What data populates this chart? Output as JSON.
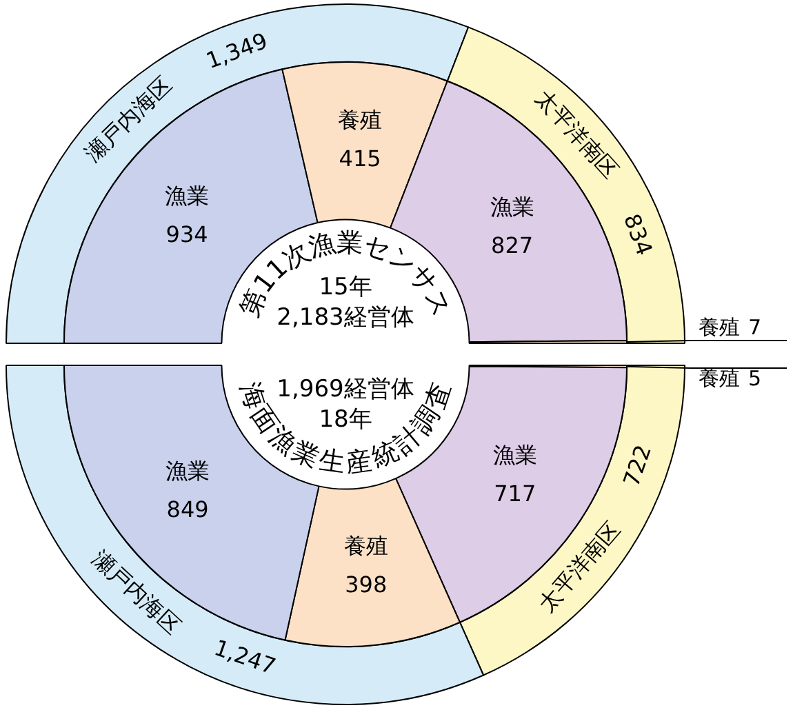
{
  "chart_data": [
    {
      "type": "donut",
      "categories": [
        "瀬戸内海区",
        "太平洋南区"
      ],
      "values": [
        1349,
        834
      ],
      "colors": [
        "#d5ecf8",
        "#fdf7c6"
      ],
      "value_labels": [
        "1,349",
        "834"
      ]
    },
    {
      "type": "donut",
      "title": "第11次漁業センサス",
      "annotations": [
        "15年",
        "2,183経営体"
      ],
      "categories": [
        "漁業",
        "養殖",
        "漁業",
        "養殖"
      ],
      "values": [
        934,
        415,
        827,
        7
      ],
      "colors": [
        "#c9d1ec",
        "#fde1c7",
        "#ddcde7",
        "#fde1c7"
      ],
      "value_labels": [
        "934",
        "415",
        "827",
        "7"
      ]
    },
    {
      "type": "donut",
      "categories": [
        "太平洋南区",
        "瀬戸内海区"
      ],
      "values": [
        722,
        1247
      ],
      "colors": [
        "#fdf7c6",
        "#d5ecf8"
      ],
      "value_labels": [
        "722",
        "1,247"
      ]
    },
    {
      "type": "donut",
      "title": "海面漁業生産統計調査",
      "annotations": [
        "1,969経営体",
        "18年"
      ],
      "categories": [
        "養殖",
        "漁業",
        "養殖",
        "漁業"
      ],
      "values": [
        5,
        717,
        398,
        849
      ],
      "colors": [
        "#fde1c7",
        "#ddcde7",
        "#fde1c7",
        "#c9d1ec"
      ],
      "value_labels": [
        "5",
        "717",
        "398",
        "849"
      ]
    }
  ]
}
